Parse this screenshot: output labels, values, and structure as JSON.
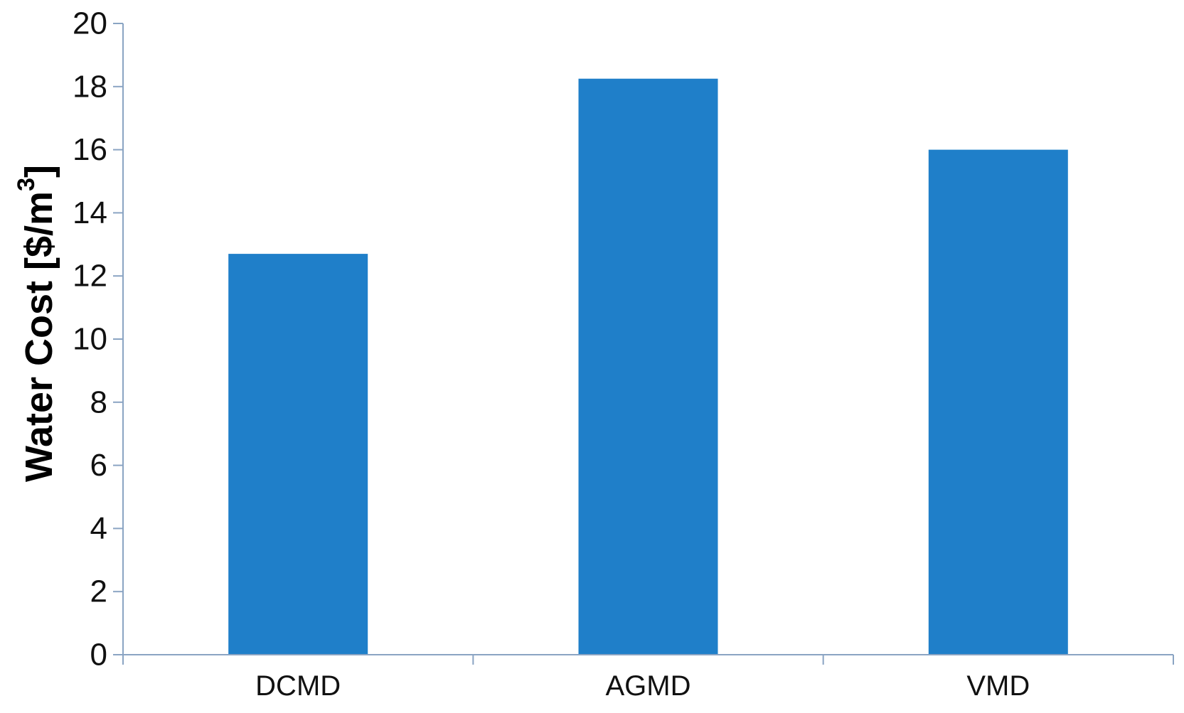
{
  "chart_data": {
    "type": "bar",
    "categories": [
      "DCMD",
      "AGMD",
      "VMD"
    ],
    "values": [
      12.7,
      18.25,
      16.0
    ],
    "title": "",
    "xlabel": "",
    "ylabel": "Water Cost [$/m",
    "ylabel_superscript": "3",
    "ylabel_suffix": "]",
    "ylim": [
      0,
      20
    ],
    "yticks": [
      0,
      2,
      4,
      6,
      8,
      10,
      12,
      14,
      16,
      18,
      20
    ],
    "grid": false,
    "legend": "none",
    "colors": {
      "bar": "#1f7fc9",
      "axis": "#8aa4c3",
      "text": "#111111"
    }
  }
}
